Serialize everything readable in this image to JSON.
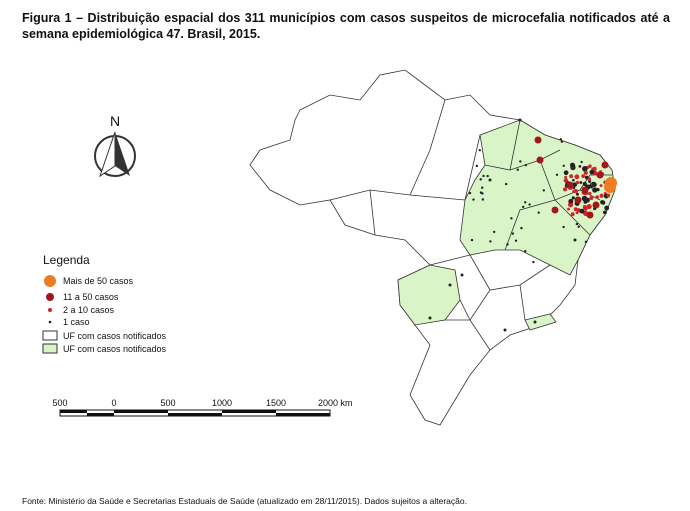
{
  "header": {
    "title": "Figura 1 – Distribuição espacial dos 311 municípios com casos suspeitos de microcefalia notificados até a semana epidemiológica 47. Brasil, 2015."
  },
  "north_arrow": {
    "label": "N"
  },
  "legend": {
    "title": "Legenda",
    "items": [
      "Mais de 50 casos",
      "11 a 50 casos",
      "2 a 10 casos",
      "1 caso",
      "UF com casos notificados",
      "UF com casos notificados"
    ]
  },
  "scale_bar": {
    "labels": [
      "500",
      "0",
      "500",
      "1000",
      "1500",
      "2000 km"
    ]
  },
  "footer": {
    "source": "Fonte: Ministério da Saúde e Secretarias Estaduais de Saúde (atualizado em 28/11/2015).  Dados sujeitos a alteração."
  }
}
